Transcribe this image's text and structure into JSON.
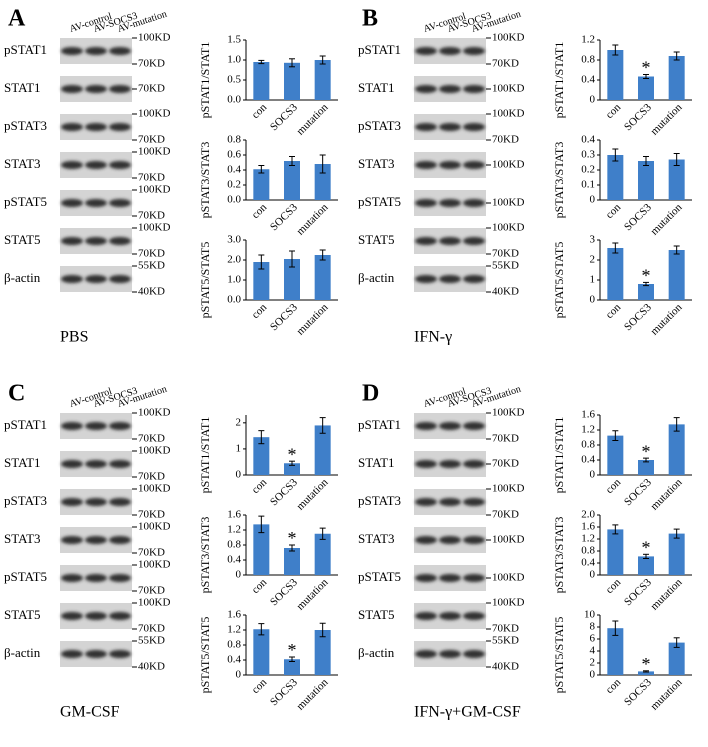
{
  "panels": [
    {
      "letter": "A",
      "condition": "PBS",
      "lanes": [
        "AV-control",
        "AV-SOCS3",
        "AV-mutation"
      ],
      "blots": [
        {
          "label": "pSTAT1",
          "markers": [
            "100KD",
            "70KD"
          ]
        },
        {
          "label": "STAT1",
          "markers": [
            "70KD"
          ]
        },
        {
          "label": "pSTAT3",
          "markers": [
            "100KD",
            "70KD"
          ]
        },
        {
          "label": "STAT3",
          "markers": [
            "100KD",
            "70KD"
          ]
        },
        {
          "label": "pSTAT5",
          "markers": [
            "100KD",
            "70KD"
          ]
        },
        {
          "label": "STAT5",
          "markers": [
            "100KD",
            "70KD"
          ]
        },
        {
          "label": "β-actin",
          "markers": [
            "55KD",
            "40KD"
          ]
        }
      ]
    },
    {
      "letter": "B",
      "condition": "IFN-γ",
      "lanes": [
        "AV-control",
        "AV-SOCS3",
        "AV-mutation"
      ],
      "blots": [
        {
          "label": "pSTAT1",
          "markers": [
            "100KD",
            "70KD"
          ]
        },
        {
          "label": "STAT1",
          "markers": [
            "100KD"
          ]
        },
        {
          "label": "pSTAT3",
          "markers": [
            "100KD",
            "70KD"
          ]
        },
        {
          "label": "STAT3",
          "markers": [
            "100KD"
          ]
        },
        {
          "label": "pSTAT5",
          "markers": [
            "100KD"
          ]
        },
        {
          "label": "STAT5",
          "markers": [
            "100KD",
            "70KD"
          ]
        },
        {
          "label": "β-actin",
          "markers": [
            "55KD",
            "40KD"
          ]
        }
      ]
    },
    {
      "letter": "C",
      "condition": "GM-CSF",
      "lanes": [
        "AV-control",
        "AV-SOCS3",
        "AV-mutation"
      ],
      "blots": [
        {
          "label": "pSTAT1",
          "markers": [
            "100KD",
            "70KD"
          ]
        },
        {
          "label": "STAT1",
          "markers": [
            "100KD",
            "70KD"
          ]
        },
        {
          "label": "pSTAT3",
          "markers": [
            "100KD",
            "70KD"
          ]
        },
        {
          "label": "STAT3",
          "markers": [
            "100KD",
            "70KD"
          ]
        },
        {
          "label": "pSTAT5",
          "markers": [
            "100KD",
            "70KD"
          ]
        },
        {
          "label": "STAT5",
          "markers": [
            "100KD",
            "70KD"
          ]
        },
        {
          "label": "β-actin",
          "markers": [
            "55KD",
            "40KD"
          ]
        }
      ]
    },
    {
      "letter": "D",
      "condition": "IFN-γ+GM-CSF",
      "lanes": [
        "AV-control",
        "AV-SOCS3",
        "AV-mutation"
      ],
      "blots": [
        {
          "label": "pSTAT1",
          "markers": [
            "100KD",
            "70KD"
          ]
        },
        {
          "label": "STAT1",
          "markers": [
            "70KD"
          ]
        },
        {
          "label": "pSTAT3",
          "markers": [
            "100KD",
            "70KD"
          ]
        },
        {
          "label": "STAT3",
          "markers": [
            "100KD"
          ]
        },
        {
          "label": "pSTAT5",
          "markers": [
            "100KD"
          ]
        },
        {
          "label": "STAT5",
          "markers": [
            "100KD",
            "70KD"
          ]
        },
        {
          "label": "β-actin",
          "markers": [
            "55KD",
            "40KD"
          ]
        }
      ]
    }
  ],
  "chart_data": [
    {
      "type": "bar",
      "ylabel": "pSTAT1/STAT1",
      "categories": [
        "con",
        "SOCS3",
        "mutation"
      ],
      "values": [
        0.95,
        0.93,
        1.0
      ],
      "errors": [
        0.04,
        0.1,
        0.1
      ],
      "color": "#3f7fc9",
      "ylim": [
        0,
        1.5
      ],
      "yticks": [
        {
          "value": 0,
          "label": "0.0"
        },
        0.5,
        {
          "value": 1,
          "label": "1.0"
        },
        1.5
      ],
      "annotations": []
    },
    {
      "type": "bar",
      "ylabel": "pSTAT3/STAT3",
      "categories": [
        "con",
        "SOCS3",
        "mutation"
      ],
      "values": [
        0.41,
        0.52,
        0.48
      ],
      "errors": [
        0.05,
        0.06,
        0.12
      ],
      "color": "#3f7fc9",
      "ylim": [
        0,
        0.8
      ],
      "yticks": [
        {
          "value": 0,
          "label": "0.0"
        },
        0.2,
        0.4,
        0.6,
        0.8
      ],
      "annotations": []
    },
    {
      "type": "bar",
      "ylabel": "pSTAT5/STAT5",
      "categories": [
        "con",
        "SOCS3",
        "mutation"
      ],
      "values": [
        1.9,
        2.05,
        2.25
      ],
      "errors": [
        0.35,
        0.4,
        0.25
      ],
      "color": "#3f7fc9",
      "ylim": [
        0,
        3
      ],
      "yticks": [
        {
          "value": 0,
          "label": "0.0"
        },
        {
          "value": 1,
          "label": "1.0"
        },
        {
          "value": 2,
          "label": "2.0"
        },
        {
          "value": 3,
          "label": "3.0"
        }
      ],
      "annotations": []
    },
    {
      "type": "bar",
      "ylabel": "pSTAT1/STAT1",
      "categories": [
        "con",
        "SOCS3",
        "mutation"
      ],
      "values": [
        1.0,
        0.47,
        0.88
      ],
      "errors": [
        0.1,
        0.04,
        0.08
      ],
      "color": "#3f7fc9",
      "ylim": [
        0,
        1.2
      ],
      "yticks": [
        0,
        0.4,
        0.8,
        1.2
      ],
      "annotations": [
        {
          "text": "*",
          "x": "SOCS3"
        }
      ]
    },
    {
      "type": "bar",
      "ylabel": "pSTAT3/STAT3",
      "categories": [
        "con",
        "SOCS3",
        "mutation"
      ],
      "values": [
        0.3,
        0.26,
        0.27
      ],
      "errors": [
        0.04,
        0.03,
        0.04
      ],
      "color": "#3f7fc9",
      "ylim": [
        0,
        0.4
      ],
      "yticks": [
        0,
        0.1,
        0.2,
        0.3,
        0.4
      ],
      "annotations": []
    },
    {
      "type": "bar",
      "ylabel": "pSTAT5/STAT5",
      "categories": [
        "con",
        "SOCS3",
        "mutation"
      ],
      "values": [
        2.6,
        0.8,
        2.5
      ],
      "errors": [
        0.25,
        0.08,
        0.2
      ],
      "color": "#3f7fc9",
      "ylim": [
        0,
        3
      ],
      "yticks": [
        0,
        1,
        2,
        3
      ],
      "annotations": [
        {
          "text": "*",
          "x": "SOCS3"
        }
      ]
    },
    {
      "type": "bar",
      "ylabel": "pSTAT1/STAT1",
      "categories": [
        "con",
        "SOCS3",
        "mutation"
      ],
      "values": [
        1.45,
        0.45,
        1.9
      ],
      "errors": [
        0.25,
        0.08,
        0.3
      ],
      "color": "#3f7fc9",
      "ylim": [
        0,
        2.3
      ],
      "yticks": [
        0,
        1,
        2
      ],
      "annotations": [
        {
          "text": "*",
          "x": "SOCS3"
        }
      ]
    },
    {
      "type": "bar",
      "ylabel": "pSTAT3/STAT3",
      "categories": [
        "con",
        "SOCS3",
        "mutation"
      ],
      "values": [
        1.35,
        0.72,
        1.1
      ],
      "errors": [
        0.22,
        0.08,
        0.15
      ],
      "color": "#3f7fc9",
      "ylim": [
        0,
        1.6
      ],
      "yticks": [
        0,
        0.4,
        0.8,
        1.2,
        1.6
      ],
      "annotations": [
        {
          "text": "*",
          "x": "SOCS3"
        }
      ]
    },
    {
      "type": "bar",
      "ylabel": "pSTAT5/STAT5",
      "categories": [
        "con",
        "SOCS3",
        "mutation"
      ],
      "values": [
        1.22,
        0.42,
        1.2
      ],
      "errors": [
        0.15,
        0.06,
        0.18
      ],
      "color": "#3f7fc9",
      "ylim": [
        0,
        1.6
      ],
      "yticks": [
        0,
        0.4,
        0.8,
        1.2,
        1.6
      ],
      "annotations": [
        {
          "text": "*",
          "x": "SOCS3"
        }
      ]
    },
    {
      "type": "bar",
      "ylabel": "pSTAT1/STAT1",
      "categories": [
        "con",
        "SOCS3",
        "mutation"
      ],
      "values": [
        1.05,
        0.4,
        1.35
      ],
      "errors": [
        0.13,
        0.05,
        0.18
      ],
      "color": "#3f7fc9",
      "ylim": [
        0,
        1.6
      ],
      "yticks": [
        0,
        0.4,
        0.8,
        1.2,
        1.6
      ],
      "annotations": [
        {
          "text": "*",
          "x": "SOCS3"
        }
      ]
    },
    {
      "type": "bar",
      "ylabel": "pSTAT3/STAT3",
      "categories": [
        "con",
        "SOCS3",
        "mutation"
      ],
      "values": [
        1.52,
        0.62,
        1.38
      ],
      "errors": [
        0.15,
        0.07,
        0.15
      ],
      "color": "#3f7fc9",
      "ylim": [
        0,
        2
      ],
      "yticks": [
        0,
        0.4,
        0.8,
        1.2,
        1.6,
        {
          "value": 2,
          "label": "2.0"
        }
      ],
      "annotations": [
        {
          "text": "*",
          "x": "SOCS3"
        }
      ]
    },
    {
      "type": "bar",
      "ylabel": "pSTAT5/STAT5",
      "categories": [
        "con",
        "SOCS3",
        "mutation"
      ],
      "values": [
        7.8,
        0.6,
        5.4
      ],
      "errors": [
        1.2,
        0.1,
        0.8
      ],
      "color": "#3f7fc9",
      "ylim": [
        0,
        10
      ],
      "yticks": [
        0,
        2,
        4,
        6,
        8,
        10
      ],
      "annotations": [
        {
          "text": "*",
          "x": "SOCS3"
        }
      ]
    }
  ]
}
